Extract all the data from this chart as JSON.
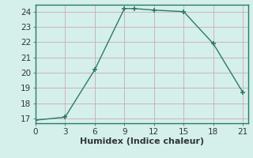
{
  "x": [
    0,
    3,
    6,
    9,
    10,
    12,
    15,
    18,
    21
  ],
  "y": [
    16.9,
    17.1,
    20.2,
    24.2,
    24.2,
    24.1,
    24.0,
    21.9,
    18.7
  ],
  "line_color": "#2a7a6a",
  "marker": "+",
  "marker_size": 4,
  "marker_linewidth": 1.2,
  "line_width": 1.0,
  "xlabel": "Humidex (Indice chaleur)",
  "xlim": [
    0,
    21.5
  ],
  "ylim": [
    16.7,
    24.45
  ],
  "xticks": [
    0,
    3,
    6,
    9,
    12,
    15,
    18,
    21
  ],
  "yticks": [
    17,
    18,
    19,
    20,
    21,
    22,
    23,
    24
  ],
  "bg_color": "#d5efeb",
  "grid_color": "#c8adb0",
  "axis_color": "#2a7a6a",
  "tick_label_color": "#303838",
  "xlabel_fontsize": 8,
  "tick_fontsize": 7.5
}
